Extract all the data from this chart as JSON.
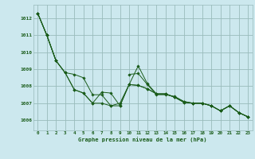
{
  "title": "Graphe pression niveau de la mer (hPa)",
  "bg_color": "#cce8ee",
  "grid_color": "#99bbbb",
  "line_color": "#1a5c1a",
  "x_ticks": [
    0,
    1,
    2,
    3,
    4,
    5,
    6,
    7,
    8,
    9,
    10,
    11,
    12,
    13,
    14,
    15,
    16,
    17,
    18,
    19,
    20,
    21,
    22,
    23
  ],
  "y_ticks": [
    1006,
    1007,
    1008,
    1009,
    1010,
    1011,
    1012
  ],
  "ylim": [
    1005.4,
    1012.8
  ],
  "xlim": [
    -0.5,
    23.5
  ],
  "series": [
    [
      1012.3,
      1011.0,
      1009.5,
      null,
      null,
      null,
      null,
      null,
      null,
      null,
      1008.7,
      1008.75,
      1008.1,
      1007.5,
      1007.5,
      1007.4,
      1007.1,
      1007.0,
      1007.0,
      1006.85,
      1006.55,
      1006.85,
      1006.45,
      1006.2
    ],
    [
      1012.3,
      1011.0,
      1009.5,
      1008.8,
      1008.7,
      1008.5,
      1007.5,
      1007.5,
      1006.85,
      1007.0,
      1008.1,
      1008.05,
      1007.85,
      1007.55,
      1007.55,
      1007.35,
      1007.05,
      1007.0,
      1007.0,
      1006.85,
      1006.55,
      1006.85,
      1006.45,
      1006.2
    ],
    [
      1012.3,
      1011.0,
      1009.5,
      1008.8,
      1007.8,
      1007.6,
      1007.0,
      1007.65,
      1007.6,
      1006.85,
      1008.1,
      1009.2,
      1008.15,
      1007.55,
      1007.55,
      1007.35,
      1007.1,
      1007.0,
      1007.0,
      1006.85,
      1006.55,
      1006.85,
      1006.45,
      1006.2
    ],
    [
      1012.3,
      1011.0,
      1009.5,
      1008.8,
      1007.8,
      1007.6,
      1007.0,
      1007.0,
      1006.85,
      1006.85,
      1008.1,
      1008.05,
      1007.85,
      1007.55,
      1007.55,
      1007.35,
      1007.05,
      1007.0,
      1007.0,
      1006.85,
      1006.55,
      1006.85,
      1006.45,
      1006.2
    ]
  ]
}
